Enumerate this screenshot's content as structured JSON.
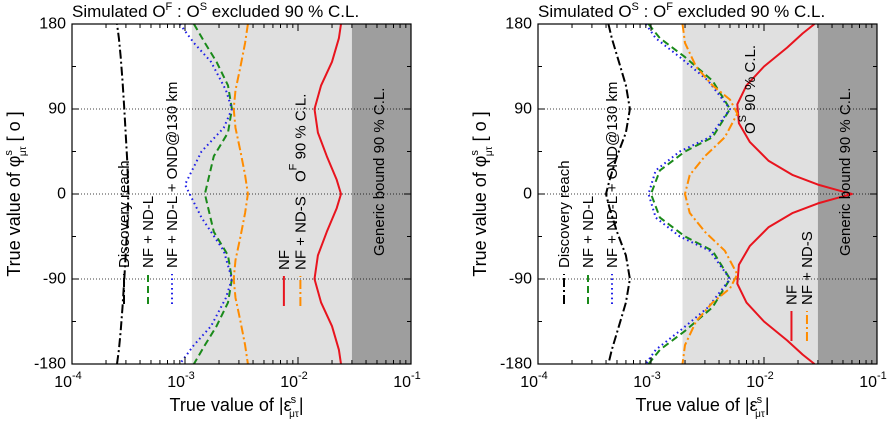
{
  "colors": {
    "band_light": "#e0e0e0",
    "band_dark": "#9e9e9e",
    "black": "#000000",
    "green": "#1a8a1a",
    "blue": "#1f1fe6",
    "red": "#e8141e",
    "orange": "#ff8c00"
  },
  "chart_data": [
    {
      "type": "line",
      "title": "Simulated O F : O S excluded 90 % C.L.",
      "title_parts": {
        "pre": "Simulated O",
        "sup1": "F",
        "mid": " : O",
        "sup2": "S",
        "post": " excluded 90 % C.L."
      },
      "xlabel_parts": {
        "pre": "True value of |ε",
        "sup": "s",
        "sub": "μτ",
        "post": "|"
      },
      "ylabel_parts": {
        "pre": "True value of φ",
        "sup": "s",
        "sub": "μτ",
        "post": " [ o ]"
      },
      "x_scale": "log",
      "xlim": [
        0.0001,
        0.1
      ],
      "ylim": [
        -180,
        180
      ],
      "x_tick_labels": [
        {
          "value": 0.0001,
          "base": "10",
          "exp": "-4"
        },
        {
          "value": 0.001,
          "base": "10",
          "exp": "-3"
        },
        {
          "value": 0.01,
          "base": "10",
          "exp": "-2"
        },
        {
          "value": 0.1,
          "base": "10",
          "exp": "-1"
        }
      ],
      "y_tick_labels": [
        "180",
        "90",
        "0",
        "-90",
        "-180"
      ],
      "y_ticks": [
        180,
        90,
        0,
        -90,
        -180
      ],
      "hlines": [
        90,
        0,
        -90
      ],
      "regions": [
        {
          "name": "light",
          "from": 0.00115,
          "to": 0.03
        },
        {
          "name": "dark",
          "from": 0.03,
          "to": 0.1
        }
      ],
      "annotations": {
        "generic": "Generic bound 90 % C.L.",
        "cl_sup": "F",
        "cl_post": " 90 % C.L."
      },
      "legend1": [
        {
          "name": "Discovery reach",
          "style": "dashdot",
          "color": "black"
        },
        {
          "name": "NF + ND-L",
          "style": "dashed",
          "color": "green"
        },
        {
          "name": "NF + ND-L + OND@130 km",
          "style": "dotted",
          "color": "blue"
        }
      ],
      "legend2": [
        {
          "name": "NF",
          "style": "solid",
          "color": "red"
        },
        {
          "name": "NF + ND-S",
          "style": "dashdot",
          "color": "orange"
        }
      ],
      "series": [
        {
          "name": "Discovery reach",
          "color": "black",
          "dash": "dashdot",
          "x": [
            0.00025,
            0.00026,
            0.00027,
            0.00028,
            0.00029,
            0.0003,
            0.00031,
            0.000315,
            0.00031,
            0.0003,
            0.00029,
            0.00028,
            0.00027,
            0.00026,
            0.00025
          ],
          "y": [
            -180,
            -165,
            -145,
            -120,
            -90,
            -60,
            -30,
            0,
            30,
            60,
            90,
            120,
            145,
            165,
            180
          ]
        },
        {
          "name": "NF + ND-L",
          "color": "green",
          "dash": "dashed",
          "x": [
            0.0012,
            0.0015,
            0.0019,
            0.0024,
            0.0026,
            0.0024,
            0.0018,
            0.0015,
            0.0018,
            0.0024,
            0.0026,
            0.0024,
            0.0019,
            0.0015,
            0.0012
          ],
          "y": [
            180,
            160,
            140,
            115,
            90,
            65,
            40,
            0,
            -40,
            -65,
            -90,
            -115,
            -140,
            -160,
            -180
          ]
        },
        {
          "name": "NF + ND-L + OND@130 km",
          "color": "blue",
          "dash": "dotted",
          "x": [
            0.0009,
            0.0012,
            0.0017,
            0.0023,
            0.0026,
            0.0022,
            0.0014,
            0.001,
            0.0014,
            0.0022,
            0.0026,
            0.0023,
            0.0017,
            0.0012,
            0.0009
          ],
          "y": [
            180,
            160,
            140,
            110,
            90,
            70,
            45,
            10,
            -25,
            -60,
            -90,
            -110,
            -140,
            -160,
            -180
          ]
        },
        {
          "name": "NF",
          "color": "red",
          "dash": "solid",
          "x": [
            0.024,
            0.023,
            0.02,
            0.016,
            0.014,
            0.015,
            0.018,
            0.022,
            0.024,
            0.022,
            0.018,
            0.015,
            0.014,
            0.016,
            0.02,
            0.023,
            0.024
          ],
          "y": [
            180,
            165,
            140,
            115,
            90,
            65,
            40,
            15,
            0,
            -15,
            -40,
            -65,
            -90,
            -115,
            -140,
            -165,
            -180
          ]
        },
        {
          "name": "NF + ND-S",
          "color": "orange",
          "dash": "dashdot",
          "x": [
            0.0036,
            0.0034,
            0.0031,
            0.0028,
            0.0027,
            0.0028,
            0.0031,
            0.0034,
            0.0036,
            0.0034,
            0.0031,
            0.0028,
            0.0027,
            0.0028,
            0.0031,
            0.0034,
            0.0036
          ],
          "y": [
            180,
            160,
            135,
            110,
            90,
            70,
            45,
            20,
            0,
            -20,
            -45,
            -70,
            -90,
            -110,
            -135,
            -160,
            -180
          ]
        }
      ]
    },
    {
      "type": "line",
      "title": "Simulated O S : O F excluded 90 % C.L.",
      "title_parts": {
        "pre": "Simulated O",
        "sup1": "S",
        "mid": " : O",
        "sup2": "F",
        "post": " excluded 90 % C.L."
      },
      "xlabel_parts": {
        "pre": "True value of |ε",
        "sup": "s",
        "sub": "μτ",
        "post": "|"
      },
      "ylabel_parts": {
        "pre": "True value of φ",
        "sup": "s",
        "sub": "μτ",
        "post": " [ o ]"
      },
      "x_scale": "log",
      "xlim": [
        0.0001,
        0.1
      ],
      "ylim": [
        -180,
        180
      ],
      "x_tick_labels": [
        {
          "value": 0.0001,
          "base": "10",
          "exp": "-4"
        },
        {
          "value": 0.001,
          "base": "10",
          "exp": "-3"
        },
        {
          "value": 0.01,
          "base": "10",
          "exp": "-2"
        },
        {
          "value": 0.1,
          "base": "10",
          "exp": "-1"
        }
      ],
      "y_tick_labels": [
        "180",
        "90",
        "0",
        "-90",
        "-180"
      ],
      "y_ticks": [
        180,
        90,
        0,
        -90,
        -180
      ],
      "hlines": [
        90,
        0,
        -90
      ],
      "regions": [
        {
          "name": "light",
          "from": 0.0019,
          "to": 0.03
        },
        {
          "name": "dark",
          "from": 0.03,
          "to": 0.1
        }
      ],
      "annotations": {
        "generic": "Generic bound 90 % C.L.",
        "cl_sup": "S",
        "cl_post": " 90 % C.L."
      },
      "legend1": [
        {
          "name": "Discovery reach",
          "style": "dashdot",
          "color": "black"
        },
        {
          "name": "NF + ND-L",
          "style": "dashed",
          "color": "green"
        },
        {
          "name": "NF + ND-L + OND@130 km",
          "style": "dotted",
          "color": "blue"
        }
      ],
      "legend2": [
        {
          "name": "NF",
          "style": "solid",
          "color": "red"
        },
        {
          "name": "NF + ND-S",
          "style": "dashdot",
          "color": "orange"
        }
      ],
      "series": [
        {
          "name": "Discovery reach",
          "color": "black",
          "dash": "dashdot",
          "x": [
            0.00042,
            0.00045,
            0.00052,
            0.0006,
            0.00065,
            0.0006,
            0.0005,
            0.00043,
            0.0004,
            0.00043,
            0.0005,
            0.0006,
            0.00065,
            0.0006,
            0.00052,
            0.00045,
            0.00042
          ],
          "y": [
            180,
            165,
            140,
            115,
            90,
            65,
            40,
            15,
            0,
            -15,
            -40,
            -65,
            -90,
            -115,
            -140,
            -165,
            -180
          ]
        },
        {
          "name": "NF + ND-L",
          "color": "green",
          "dash": "dashed",
          "x": [
            0.00095,
            0.0012,
            0.002,
            0.0035,
            0.005,
            0.0035,
            0.002,
            0.0012,
            0.001,
            0.0012,
            0.002,
            0.0035,
            0.005,
            0.0035,
            0.002,
            0.0012,
            0.00095
          ],
          "y": [
            180,
            165,
            145,
            120,
            90,
            60,
            45,
            25,
            0,
            -25,
            -45,
            -60,
            -90,
            -120,
            -145,
            -165,
            -180
          ]
        },
        {
          "name": "NF + ND-L + OND@130 km",
          "color": "blue",
          "dash": "dotted",
          "x": [
            0.0009,
            0.0011,
            0.0018,
            0.0032,
            0.005,
            0.0033,
            0.0018,
            0.0011,
            0.00095,
            0.0011,
            0.0018,
            0.0033,
            0.005,
            0.0032,
            0.0018,
            0.0011,
            0.0009
          ],
          "y": [
            180,
            165,
            145,
            120,
            90,
            60,
            45,
            25,
            0,
            -25,
            -45,
            -60,
            -90,
            -120,
            -145,
            -165,
            -180
          ]
        },
        {
          "name": "NF",
          "color": "red",
          "dash": "solid",
          "x": [
            0.028,
            0.022,
            0.016,
            0.01,
            0.007,
            0.0058,
            0.006,
            0.0075,
            0.011,
            0.018,
            0.03,
            0.045,
            0.06,
            0.045,
            0.03,
            0.018,
            0.011,
            0.0075,
            0.006,
            0.0058,
            0.007,
            0.01,
            0.016,
            0.022,
            0.028
          ],
          "y": [
            180,
            170,
            155,
            135,
            115,
            95,
            75,
            55,
            35,
            20,
            10,
            4,
            0,
            -4,
            -10,
            -20,
            -35,
            -55,
            -75,
            -95,
            -115,
            -135,
            -155,
            -170,
            -180
          ]
        },
        {
          "name": "NF + ND-S",
          "color": "orange",
          "dash": "dashdot",
          "x": [
            0.0019,
            0.002,
            0.0025,
            0.0035,
            0.005,
            0.0058,
            0.0045,
            0.003,
            0.0022,
            0.002,
            0.0022,
            0.003,
            0.0045,
            0.0058,
            0.005,
            0.0035,
            0.0025,
            0.002,
            0.0019
          ],
          "y": [
            180,
            160,
            135,
            115,
            100,
            85,
            60,
            40,
            20,
            0,
            -20,
            -40,
            -60,
            -85,
            -100,
            -115,
            -135,
            -160,
            -180
          ]
        }
      ]
    }
  ]
}
